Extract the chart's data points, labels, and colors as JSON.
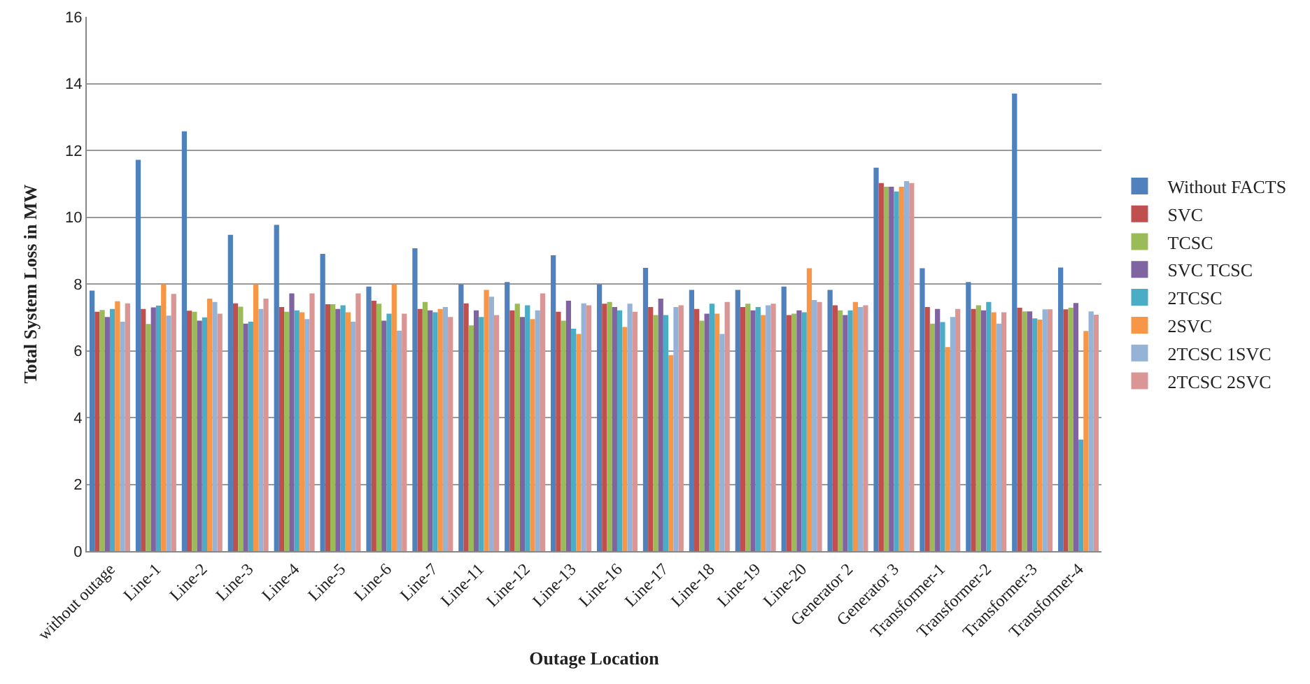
{
  "chart_data": {
    "type": "bar",
    "xlabel": "Outage Location",
    "ylabel": "Total System Loss in MW",
    "categories": [
      "without outage",
      "Line-1",
      "Line-2",
      "Line-3",
      "Line-4",
      "Line-5",
      "Line-6",
      "Line-7",
      "Line-11",
      "Line-12",
      "Line-13",
      "Line-16",
      "Line-17",
      "Line-18",
      "Line-19",
      "Line-20",
      "Generator 2",
      "Generator 3",
      "Transformer-1",
      "Transformer-2",
      "Transformer-3",
      "Transformer-4"
    ],
    "series": [
      {
        "name": "Without FACTS",
        "color": "#4f81bd",
        "values": [
          7.8,
          11.72,
          12.57,
          9.47,
          9.77,
          8.9,
          7.92,
          9.07,
          7.99,
          8.06,
          8.86,
          7.99,
          8.48,
          7.82,
          7.82,
          7.92,
          7.82,
          11.48,
          8.47,
          8.06,
          13.7,
          8.49
        ]
      },
      {
        "name": "SVC",
        "color": "#c0504d",
        "values": [
          7.17,
          7.25,
          7.2,
          7.42,
          7.31,
          7.39,
          7.5,
          7.25,
          7.42,
          7.21,
          7.17,
          7.41,
          7.31,
          7.25,
          7.31,
          7.07,
          7.36,
          11.02,
          7.31,
          7.25,
          7.29,
          7.24
        ]
      },
      {
        "name": "TCSC",
        "color": "#9bbb59",
        "values": [
          7.22,
          6.8,
          7.17,
          7.32,
          7.17,
          7.39,
          7.41,
          7.46,
          6.76,
          7.41,
          6.9,
          7.46,
          7.07,
          6.9,
          7.41,
          7.11,
          7.21,
          10.91,
          6.81,
          7.36,
          7.18,
          7.29
        ]
      },
      {
        "name": "SVC TCSC",
        "color": "#8064a2",
        "values": [
          7.01,
          7.3,
          6.9,
          6.81,
          7.72,
          7.25,
          6.9,
          7.21,
          7.21,
          7.01,
          7.5,
          7.31,
          7.56,
          7.11,
          7.21,
          7.21,
          7.07,
          10.91,
          7.25,
          7.21,
          7.18,
          7.43
        ]
      },
      {
        "name": "2TCSC",
        "color": "#4bacc6",
        "values": [
          7.25,
          7.35,
          7.0,
          6.87,
          7.21,
          7.36,
          7.11,
          7.15,
          7.01,
          7.36,
          6.66,
          7.21,
          7.07,
          7.41,
          7.31,
          7.15,
          7.21,
          10.77,
          6.86,
          7.46,
          6.97,
          3.34
        ]
      },
      {
        "name": "2SVC",
        "color": "#f79646",
        "values": [
          7.48,
          7.99,
          7.56,
          7.99,
          7.15,
          7.15,
          7.99,
          7.25,
          7.82,
          6.95,
          6.5,
          6.71,
          5.87,
          7.11,
          7.07,
          8.47,
          7.46,
          10.91,
          6.11,
          7.15,
          6.93,
          6.59
        ]
      },
      {
        "name": "2TCSC 1SVC",
        "color": "#95b3d7",
        "values": [
          6.87,
          7.05,
          7.46,
          7.25,
          6.95,
          6.87,
          6.6,
          7.31,
          7.62,
          7.21,
          7.42,
          7.41,
          7.31,
          6.5,
          7.36,
          7.52,
          7.31,
          11.08,
          7.01,
          6.81,
          7.24,
          7.18
        ]
      },
      {
        "name": "2TCSC 2SVC",
        "color": "#d99694",
        "values": [
          7.42,
          7.7,
          7.11,
          7.56,
          7.72,
          7.72,
          7.11,
          7.01,
          7.07,
          7.72,
          7.36,
          7.17,
          7.36,
          7.46,
          7.41,
          7.46,
          7.36,
          11.02,
          7.25,
          7.15,
          7.24,
          7.08
        ]
      }
    ],
    "ylim": [
      0,
      16
    ],
    "yticks": [
      0,
      2,
      4,
      6,
      8,
      10,
      12,
      14,
      16
    ],
    "grid": "y",
    "legend": "right"
  }
}
